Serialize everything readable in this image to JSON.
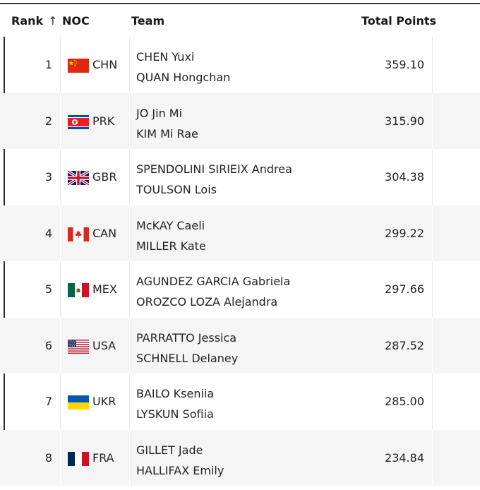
{
  "header": {
    "rank_label": "Rank",
    "noc_label": "NOC",
    "team_label": "Team",
    "points_label": "Total Points",
    "sort_glyph": "↑"
  },
  "rows": [
    {
      "rank": "1",
      "noc": "CHN",
      "flag": "china-flag-icon",
      "athletes": [
        "CHEN Yuxi",
        "QUAN Hongchan"
      ],
      "points": "359.10"
    },
    {
      "rank": "2",
      "noc": "PRK",
      "flag": "north-korea-flag-icon",
      "athletes": [
        "JO Jin Mi",
        "KIM Mi Rae"
      ],
      "points": "315.90"
    },
    {
      "rank": "3",
      "noc": "GBR",
      "flag": "great-britain-flag-icon",
      "athletes": [
        "SPENDOLINI SIRIEIX Andrea",
        "TOULSON Lois"
      ],
      "points": "304.38"
    },
    {
      "rank": "4",
      "noc": "CAN",
      "flag": "canada-flag-icon",
      "athletes": [
        "McKAY Caeli",
        "MILLER Kate"
      ],
      "points": "299.22"
    },
    {
      "rank": "5",
      "noc": "MEX",
      "flag": "mexico-flag-icon",
      "athletes": [
        "AGUNDEZ GARCIA Gabriela",
        "OROZCO LOZA Alejandra"
      ],
      "points": "297.66"
    },
    {
      "rank": "6",
      "noc": "USA",
      "flag": "usa-flag-icon",
      "athletes": [
        "PARRATTO Jessica",
        "SCHNELL Delaney"
      ],
      "points": "287.52"
    },
    {
      "rank": "7",
      "noc": "UKR",
      "flag": "ukraine-flag-icon",
      "athletes": [
        "BAILO Kseniia",
        "LYSKUN Sofiia"
      ],
      "points": "285.00"
    },
    {
      "rank": "8",
      "noc": "FRA",
      "flag": "france-flag-icon",
      "athletes": [
        "GILLET Jade",
        "HALLIFAX Emily"
      ],
      "points": "234.84"
    }
  ]
}
